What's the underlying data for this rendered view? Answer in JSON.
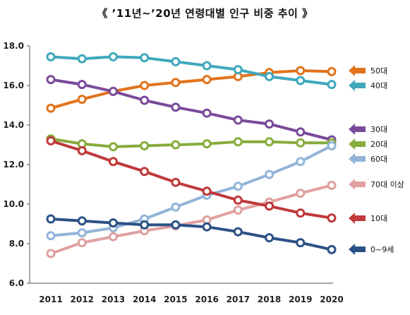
{
  "title": "《 ’11년~’20년 연령대별 인구 비중 추이 》",
  "chart_data": {
    "type": "line",
    "title": "《 ’11년~’20년 연령대별 인구 비중 추이 》",
    "xlabel": "",
    "ylabel": "",
    "ylim": [
      6.0,
      18.0
    ],
    "yticks": [
      "6.0",
      "8.0",
      "10.0",
      "12.0",
      "14.0",
      "16.0",
      "18.0"
    ],
    "grid": false,
    "legend_position": "right",
    "x": [
      "2011",
      "2012",
      "2013",
      "2014",
      "2015",
      "2016",
      "2017",
      "2018",
      "2019",
      "2020"
    ],
    "series": [
      {
        "name": "50대",
        "color": "#E2731C",
        "values": [
          14.85,
          15.3,
          15.7,
          16.0,
          16.15,
          16.3,
          16.45,
          16.65,
          16.75,
          16.7
        ]
      },
      {
        "name": "40대",
        "color": "#3FA8BC",
        "values": [
          17.45,
          17.35,
          17.45,
          17.4,
          17.2,
          17.0,
          16.8,
          16.45,
          16.25,
          16.05
        ]
      },
      {
        "name": "30대",
        "color": "#7A4A9A",
        "values": [
          16.3,
          16.05,
          15.7,
          15.25,
          14.9,
          14.6,
          14.25,
          14.05,
          13.65,
          13.25
        ]
      },
      {
        "name": "20대",
        "color": "#86AC3C",
        "values": [
          13.3,
          13.05,
          12.9,
          12.95,
          13.0,
          13.05,
          13.15,
          13.15,
          13.1,
          13.1
        ]
      },
      {
        "name": "60대",
        "color": "#92B4D8",
        "values": [
          8.4,
          8.55,
          8.8,
          9.25,
          9.85,
          10.45,
          10.9,
          11.5,
          12.15,
          12.95
        ]
      },
      {
        "name": "70대 이상",
        "color": "#E0A0A0",
        "values": [
          7.5,
          8.05,
          8.35,
          8.65,
          8.9,
          9.2,
          9.7,
          10.1,
          10.55,
          10.95
        ]
      },
      {
        "name": "10대",
        "color": "#C0393B",
        "values": [
          13.2,
          12.7,
          12.15,
          11.65,
          11.1,
          10.65,
          10.2,
          9.9,
          9.55,
          9.3
        ]
      },
      {
        "name": "0~9세",
        "color": "#2B5286",
        "values": [
          9.25,
          9.15,
          9.05,
          8.95,
          8.95,
          8.85,
          8.6,
          8.3,
          8.05,
          7.7
        ]
      }
    ]
  },
  "legend": [
    {
      "label": "50대",
      "color": "#E2731C"
    },
    {
      "label": "40대",
      "color": "#3FA8BC"
    },
    {
      "label": "30대",
      "color": "#7A4A9A"
    },
    {
      "label": "20대",
      "color": "#86AC3C"
    },
    {
      "label": "60대",
      "color": "#92B4D8"
    },
    {
      "label": "70대 이상",
      "color": "#E0A0A0"
    },
    {
      "label": "10대",
      "color": "#C0393B"
    },
    {
      "label": "0~9세",
      "color": "#2B5286"
    }
  ]
}
